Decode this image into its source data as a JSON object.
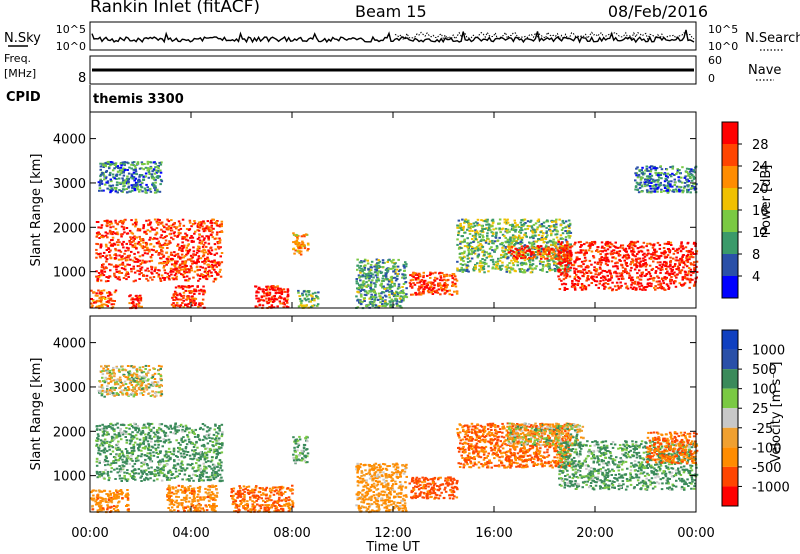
{
  "header": {
    "station": "Rankin Inlet (fitACF)",
    "beam": "Beam 15",
    "date": "08/Feb/2016"
  },
  "top_panel": {
    "left_label": "N.Sky",
    "right_label": "N.Search",
    "left_ticks": [
      "10^5",
      "10^0"
    ],
    "right_ticks": [
      "10^5",
      "10^0"
    ]
  },
  "freq_panel": {
    "left_label_1": "Freq.",
    "left_label_2": "[MHz]",
    "left_tick": "8",
    "right_label": "Nave",
    "right_ticks": [
      "60",
      "0"
    ]
  },
  "cpid": {
    "label": "CPID",
    "value": "themis 3300"
  },
  "colors": {
    "power": [
      "#0000ff",
      "#2a50a8",
      "#3a9a6a",
      "#7ac943",
      "#f0c000",
      "#ff8c00",
      "#ff4500",
      "#ff0000"
    ],
    "velocity": [
      "#ff0000",
      "#ff4500",
      "#ff8c00",
      "#f0a030",
      "#c8c8c8",
      "#7ac943",
      "#3a8a5a",
      "#2a50a8",
      "#1040c0"
    ]
  },
  "chart_data": [
    {
      "type": "heatmap",
      "panel": "power",
      "ylabel": "Slant Range [km]",
      "ylim": [
        180,
        4600
      ],
      "yticks": [
        1000,
        2000,
        3000,
        4000
      ],
      "xlim": [
        0,
        24
      ],
      "colorbar": {
        "label": "Power [dB]",
        "ticks": [
          "4",
          "8",
          "12",
          "16",
          "20",
          "24",
          "28"
        ],
        "range": [
          0,
          30
        ]
      },
      "regions": [
        {
          "t": [
            0.2,
            5.2
          ],
          "r": [
            800,
            2200
          ],
          "level": 26
        },
        {
          "t": [
            0.3,
            2.8
          ],
          "r": [
            2800,
            3500
          ],
          "level": 8
        },
        {
          "t": [
            0.0,
            1.0
          ],
          "r": [
            200,
            600
          ],
          "level": 24
        },
        {
          "t": [
            1.5,
            2.0
          ],
          "r": [
            200,
            500
          ],
          "level": 26
        },
        {
          "t": [
            3.2,
            4.5
          ],
          "r": [
            200,
            700
          ],
          "level": 26
        },
        {
          "t": [
            6.5,
            7.8
          ],
          "r": [
            200,
            700
          ],
          "level": 28
        },
        {
          "t": [
            8.0,
            8.6
          ],
          "r": [
            1400,
            1900
          ],
          "level": 20
        },
        {
          "t": [
            8.2,
            9.0
          ],
          "r": [
            200,
            600
          ],
          "level": 12
        },
        {
          "t": [
            10.5,
            12.5
          ],
          "r": [
            200,
            1300
          ],
          "level": 10
        },
        {
          "t": [
            12.6,
            14.5
          ],
          "r": [
            500,
            1000
          ],
          "level": 26
        },
        {
          "t": [
            14.5,
            19.0
          ],
          "r": [
            1000,
            2200
          ],
          "level": 12
        },
        {
          "t": [
            16.5,
            19.0
          ],
          "r": [
            1300,
            1600
          ],
          "level": 24
        },
        {
          "t": [
            18.5,
            24.0
          ],
          "r": [
            600,
            1700
          ],
          "level": 28
        },
        {
          "t": [
            21.5,
            24.0
          ],
          "r": [
            2800,
            3400
          ],
          "level": 8
        }
      ]
    },
    {
      "type": "heatmap",
      "panel": "velocity",
      "ylabel": "Slant Range [km]",
      "xlabel": "Time UT",
      "ylim": [
        180,
        4600
      ],
      "yticks": [
        1000,
        2000,
        3000,
        4000
      ],
      "xlim": [
        0,
        24
      ],
      "xticks": [
        "00:00",
        "04:00",
        "08:00",
        "12:00",
        "16:00",
        "20:00",
        "00:00"
      ],
      "colorbar": {
        "label": "Velocity [m s⁻¹]",
        "ticks": [
          "1000",
          "500",
          "100",
          "25",
          "-25",
          "-100",
          "-500",
          "-1000"
        ],
        "range": [
          -1000,
          1000
        ]
      },
      "regions": [
        {
          "t": [
            0.2,
            5.2
          ],
          "r": [
            900,
            2200
          ],
          "level": 150
        },
        {
          "t": [
            0.3,
            2.8
          ],
          "r": [
            2800,
            3500
          ],
          "level": 0
        },
        {
          "t": [
            0.0,
            1.5
          ],
          "r": [
            200,
            700
          ],
          "level": -200
        },
        {
          "t": [
            3.0,
            5.0
          ],
          "r": [
            200,
            800
          ],
          "level": -200
        },
        {
          "t": [
            5.5,
            8.0
          ],
          "r": [
            200,
            800
          ],
          "level": -300
        },
        {
          "t": [
            8.0,
            8.6
          ],
          "r": [
            1300,
            1900
          ],
          "level": 120
        },
        {
          "t": [
            10.5,
            12.5
          ],
          "r": [
            200,
            1300
          ],
          "level": -150
        },
        {
          "t": [
            12.6,
            14.5
          ],
          "r": [
            500,
            1000
          ],
          "level": -400
        },
        {
          "t": [
            14.5,
            19.0
          ],
          "r": [
            1200,
            2200
          ],
          "level": -300
        },
        {
          "t": [
            16.5,
            19.5
          ],
          "r": [
            1700,
            2200
          ],
          "level": 0
        },
        {
          "t": [
            18.5,
            24.0
          ],
          "r": [
            700,
            1800
          ],
          "level": 150
        },
        {
          "t": [
            22.0,
            24.0
          ],
          "r": [
            1300,
            2000
          ],
          "level": -300
        }
      ]
    }
  ]
}
